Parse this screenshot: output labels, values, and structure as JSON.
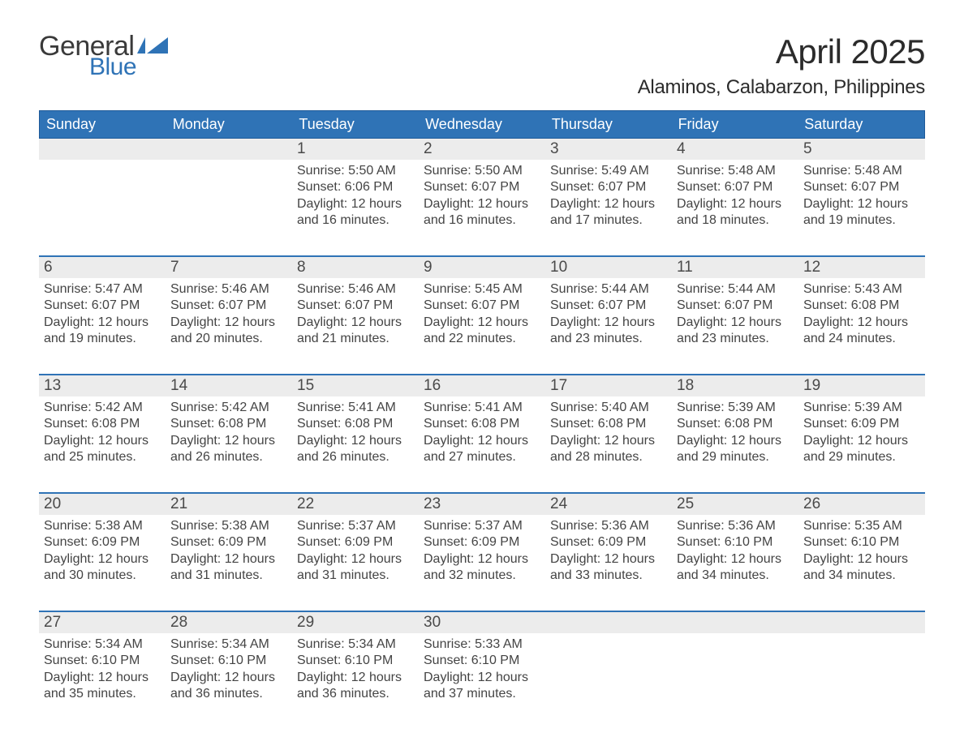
{
  "brand": {
    "word1": "General",
    "word2": "Blue"
  },
  "title": "April 2025",
  "location": "Alaminos, Calabarzon, Philippines",
  "colors": {
    "accent": "#2f73b6",
    "accent_dark": "#1e5a99",
    "row_bg": "#ececec",
    "text": "#333333",
    "border": "#2f73b6"
  },
  "days_of_week": [
    "Sunday",
    "Monday",
    "Tuesday",
    "Wednesday",
    "Thursday",
    "Friday",
    "Saturday"
  ],
  "weeks": [
    [
      {
        "n": "",
        "sunrise": "",
        "sunset": "",
        "daylight1": "",
        "daylight2": ""
      },
      {
        "n": "",
        "sunrise": "",
        "sunset": "",
        "daylight1": "",
        "daylight2": ""
      },
      {
        "n": "1",
        "sunrise": "Sunrise: 5:50 AM",
        "sunset": "Sunset: 6:06 PM",
        "daylight1": "Daylight: 12 hours",
        "daylight2": "and 16 minutes."
      },
      {
        "n": "2",
        "sunrise": "Sunrise: 5:50 AM",
        "sunset": "Sunset: 6:07 PM",
        "daylight1": "Daylight: 12 hours",
        "daylight2": "and 16 minutes."
      },
      {
        "n": "3",
        "sunrise": "Sunrise: 5:49 AM",
        "sunset": "Sunset: 6:07 PM",
        "daylight1": "Daylight: 12 hours",
        "daylight2": "and 17 minutes."
      },
      {
        "n": "4",
        "sunrise": "Sunrise: 5:48 AM",
        "sunset": "Sunset: 6:07 PM",
        "daylight1": "Daylight: 12 hours",
        "daylight2": "and 18 minutes."
      },
      {
        "n": "5",
        "sunrise": "Sunrise: 5:48 AM",
        "sunset": "Sunset: 6:07 PM",
        "daylight1": "Daylight: 12 hours",
        "daylight2": "and 19 minutes."
      }
    ],
    [
      {
        "n": "6",
        "sunrise": "Sunrise: 5:47 AM",
        "sunset": "Sunset: 6:07 PM",
        "daylight1": "Daylight: 12 hours",
        "daylight2": "and 19 minutes."
      },
      {
        "n": "7",
        "sunrise": "Sunrise: 5:46 AM",
        "sunset": "Sunset: 6:07 PM",
        "daylight1": "Daylight: 12 hours",
        "daylight2": "and 20 minutes."
      },
      {
        "n": "8",
        "sunrise": "Sunrise: 5:46 AM",
        "sunset": "Sunset: 6:07 PM",
        "daylight1": "Daylight: 12 hours",
        "daylight2": "and 21 minutes."
      },
      {
        "n": "9",
        "sunrise": "Sunrise: 5:45 AM",
        "sunset": "Sunset: 6:07 PM",
        "daylight1": "Daylight: 12 hours",
        "daylight2": "and 22 minutes."
      },
      {
        "n": "10",
        "sunrise": "Sunrise: 5:44 AM",
        "sunset": "Sunset: 6:07 PM",
        "daylight1": "Daylight: 12 hours",
        "daylight2": "and 23 minutes."
      },
      {
        "n": "11",
        "sunrise": "Sunrise: 5:44 AM",
        "sunset": "Sunset: 6:07 PM",
        "daylight1": "Daylight: 12 hours",
        "daylight2": "and 23 minutes."
      },
      {
        "n": "12",
        "sunrise": "Sunrise: 5:43 AM",
        "sunset": "Sunset: 6:08 PM",
        "daylight1": "Daylight: 12 hours",
        "daylight2": "and 24 minutes."
      }
    ],
    [
      {
        "n": "13",
        "sunrise": "Sunrise: 5:42 AM",
        "sunset": "Sunset: 6:08 PM",
        "daylight1": "Daylight: 12 hours",
        "daylight2": "and 25 minutes."
      },
      {
        "n": "14",
        "sunrise": "Sunrise: 5:42 AM",
        "sunset": "Sunset: 6:08 PM",
        "daylight1": "Daylight: 12 hours",
        "daylight2": "and 26 minutes."
      },
      {
        "n": "15",
        "sunrise": "Sunrise: 5:41 AM",
        "sunset": "Sunset: 6:08 PM",
        "daylight1": "Daylight: 12 hours",
        "daylight2": "and 26 minutes."
      },
      {
        "n": "16",
        "sunrise": "Sunrise: 5:41 AM",
        "sunset": "Sunset: 6:08 PM",
        "daylight1": "Daylight: 12 hours",
        "daylight2": "and 27 minutes."
      },
      {
        "n": "17",
        "sunrise": "Sunrise: 5:40 AM",
        "sunset": "Sunset: 6:08 PM",
        "daylight1": "Daylight: 12 hours",
        "daylight2": "and 28 minutes."
      },
      {
        "n": "18",
        "sunrise": "Sunrise: 5:39 AM",
        "sunset": "Sunset: 6:08 PM",
        "daylight1": "Daylight: 12 hours",
        "daylight2": "and 29 minutes."
      },
      {
        "n": "19",
        "sunrise": "Sunrise: 5:39 AM",
        "sunset": "Sunset: 6:09 PM",
        "daylight1": "Daylight: 12 hours",
        "daylight2": "and 29 minutes."
      }
    ],
    [
      {
        "n": "20",
        "sunrise": "Sunrise: 5:38 AM",
        "sunset": "Sunset: 6:09 PM",
        "daylight1": "Daylight: 12 hours",
        "daylight2": "and 30 minutes."
      },
      {
        "n": "21",
        "sunrise": "Sunrise: 5:38 AM",
        "sunset": "Sunset: 6:09 PM",
        "daylight1": "Daylight: 12 hours",
        "daylight2": "and 31 minutes."
      },
      {
        "n": "22",
        "sunrise": "Sunrise: 5:37 AM",
        "sunset": "Sunset: 6:09 PM",
        "daylight1": "Daylight: 12 hours",
        "daylight2": "and 31 minutes."
      },
      {
        "n": "23",
        "sunrise": "Sunrise: 5:37 AM",
        "sunset": "Sunset: 6:09 PM",
        "daylight1": "Daylight: 12 hours",
        "daylight2": "and 32 minutes."
      },
      {
        "n": "24",
        "sunrise": "Sunrise: 5:36 AM",
        "sunset": "Sunset: 6:09 PM",
        "daylight1": "Daylight: 12 hours",
        "daylight2": "and 33 minutes."
      },
      {
        "n": "25",
        "sunrise": "Sunrise: 5:36 AM",
        "sunset": "Sunset: 6:10 PM",
        "daylight1": "Daylight: 12 hours",
        "daylight2": "and 34 minutes."
      },
      {
        "n": "26",
        "sunrise": "Sunrise: 5:35 AM",
        "sunset": "Sunset: 6:10 PM",
        "daylight1": "Daylight: 12 hours",
        "daylight2": "and 34 minutes."
      }
    ],
    [
      {
        "n": "27",
        "sunrise": "Sunrise: 5:34 AM",
        "sunset": "Sunset: 6:10 PM",
        "daylight1": "Daylight: 12 hours",
        "daylight2": "and 35 minutes."
      },
      {
        "n": "28",
        "sunrise": "Sunrise: 5:34 AM",
        "sunset": "Sunset: 6:10 PM",
        "daylight1": "Daylight: 12 hours",
        "daylight2": "and 36 minutes."
      },
      {
        "n": "29",
        "sunrise": "Sunrise: 5:34 AM",
        "sunset": "Sunset: 6:10 PM",
        "daylight1": "Daylight: 12 hours",
        "daylight2": "and 36 minutes."
      },
      {
        "n": "30",
        "sunrise": "Sunrise: 5:33 AM",
        "sunset": "Sunset: 6:10 PM",
        "daylight1": "Daylight: 12 hours",
        "daylight2": "and 37 minutes."
      },
      {
        "n": "",
        "sunrise": "",
        "sunset": "",
        "daylight1": "",
        "daylight2": ""
      },
      {
        "n": "",
        "sunrise": "",
        "sunset": "",
        "daylight1": "",
        "daylight2": ""
      },
      {
        "n": "",
        "sunrise": "",
        "sunset": "",
        "daylight1": "",
        "daylight2": ""
      }
    ]
  ]
}
